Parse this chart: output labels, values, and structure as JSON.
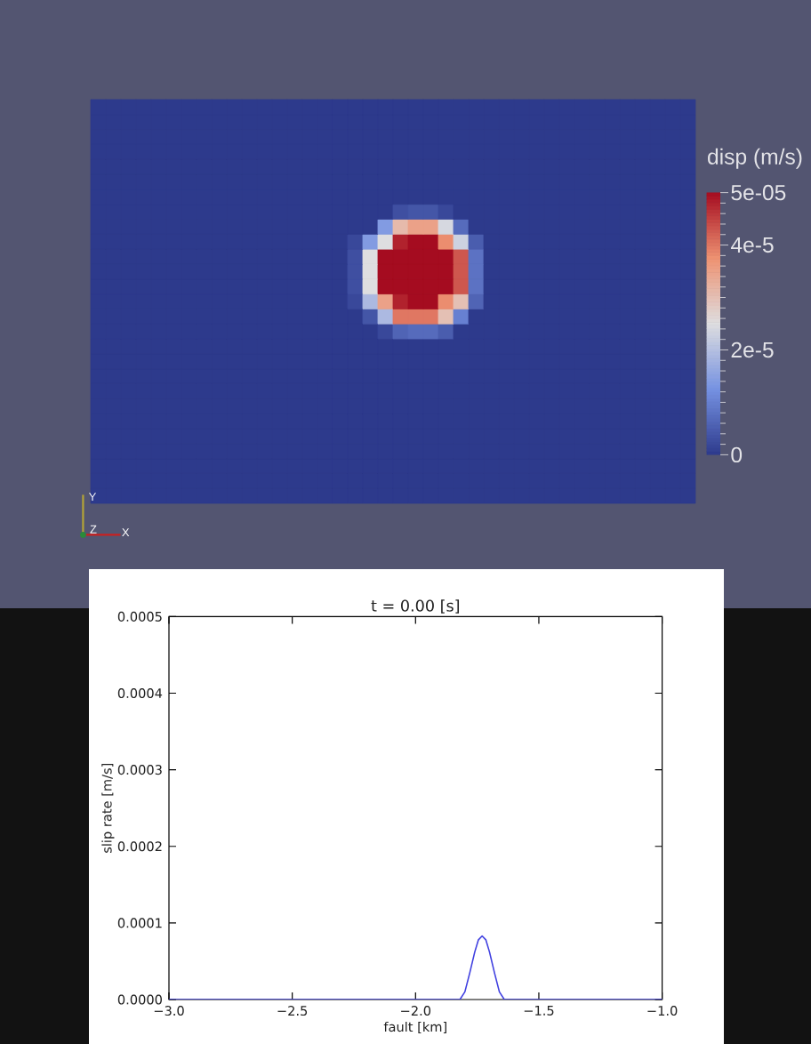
{
  "chart_data": [
    {
      "type": "heatmap",
      "clabel": "disp (m/s)",
      "annotations": [
        "Y",
        "Z",
        "X"
      ],
      "categories": [
        null,
        null,
        null,
        null,
        null,
        null,
        null,
        null,
        null,
        null,
        null,
        null,
        null,
        null,
        null,
        null,
        null,
        null,
        null,
        null,
        null,
        null,
        null,
        null,
        null,
        null,
        null,
        null,
        null,
        null,
        null,
        null,
        null,
        null,
        null,
        null,
        null,
        null,
        null,
        null
      ],
      "y_categories": [
        null,
        null,
        null,
        null,
        null,
        null,
        null,
        null,
        null,
        null,
        null,
        null,
        null,
        null,
        null,
        null,
        null,
        null,
        null,
        null,
        null,
        null,
        null,
        null,
        null,
        null,
        null
      ],
      "clim": [
        0,
        5e-05
      ],
      "cticks": [
        0,
        {
          "value": 2e-06,
          "label": null
        },
        {
          "value": 4e-06,
          "label": null
        },
        {
          "value": 6e-06,
          "label": null
        },
        {
          "value": 8e-06,
          "label": null
        },
        {
          "value": 1e-05,
          "label": null
        },
        {
          "value": 1.2e-05,
          "label": null
        },
        {
          "value": 1.4e-05,
          "label": null
        },
        {
          "value": 1.6e-05,
          "label": null
        },
        {
          "value": 1.8e-05,
          "label": null
        },
        {
          "value": 2e-05,
          "label": "2e-5"
        },
        {
          "value": 2.2e-05,
          "label": null
        },
        {
          "value": 2.4e-05,
          "label": null
        },
        {
          "value": 2.6e-05,
          "label": null
        },
        {
          "value": 2.8e-05,
          "label": null
        },
        {
          "value": 3e-05,
          "label": null
        },
        {
          "value": 3.2e-05,
          "label": null
        },
        {
          "value": 3.4e-05,
          "label": null
        },
        {
          "value": 3.6e-05,
          "label": null
        },
        {
          "value": 3.8e-05,
          "label": null
        },
        {
          "value": 4e-05,
          "label": "4e-5"
        },
        {
          "value": 4.2e-05,
          "label": null
        },
        {
          "value": 4.4e-05,
          "label": null
        },
        {
          "value": 4.6e-05,
          "label": null
        },
        {
          "value": 4.8e-05,
          "label": null
        },
        {
          "value": 5e-05,
          "label": "5e-05"
        }
      ],
      "cells": [
        [
          0,
          0,
          0,
          0,
          0,
          0,
          0,
          0,
          0,
          0,
          0,
          0,
          0,
          0,
          0,
          0,
          0,
          0,
          0,
          0,
          0,
          0,
          0,
          0,
          0,
          0,
          0,
          0,
          0,
          0,
          0,
          0,
          0,
          0,
          0,
          0,
          0,
          0,
          0,
          0
        ],
        [
          0,
          0,
          0,
          0,
          0,
          0,
          0,
          0,
          0,
          0,
          0,
          0,
          0,
          0,
          0,
          0,
          0,
          0,
          0,
          0,
          0,
          0,
          0,
          0,
          0,
          0,
          0,
          0,
          0,
          0,
          0,
          0,
          0,
          0,
          0,
          0,
          0,
          0,
          0,
          0
        ],
        [
          0,
          0,
          0,
          0,
          0,
          0,
          0,
          0,
          0,
          0,
          0,
          0,
          0,
          0,
          0,
          0,
          0,
          0,
          0,
          0,
          0,
          0,
          0,
          0,
          0,
          0,
          0,
          0,
          0,
          0,
          0,
          0,
          0,
          0,
          0,
          0,
          0,
          0,
          0,
          0
        ],
        [
          0,
          0,
          0,
          0,
          0,
          0,
          0,
          0,
          0,
          0,
          0,
          0,
          0,
          0,
          0,
          0,
          0,
          0,
          0,
          0,
          0,
          0,
          0,
          0,
          0,
          0,
          0,
          0,
          0,
          0,
          0,
          0,
          0,
          0,
          0,
          0,
          0,
          0,
          0,
          0
        ],
        [
          0,
          0,
          0,
          0,
          0,
          0,
          0,
          0,
          0,
          0,
          0,
          0,
          0,
          0,
          0,
          0,
          0,
          0,
          0,
          0,
          0,
          0,
          0,
          0,
          0,
          0,
          0,
          0,
          0,
          0,
          0,
          0,
          0,
          0,
          0,
          0,
          0,
          0,
          0,
          0
        ],
        [
          0,
          0,
          0,
          0,
          0,
          0,
          0,
          0,
          0,
          0,
          0,
          0,
          0,
          0,
          0,
          0,
          0,
          0,
          0,
          0,
          0,
          0,
          0,
          0,
          0,
          0,
          0,
          0,
          0,
          0,
          0,
          0,
          0,
          0,
          0,
          0,
          0,
          0,
          0,
          0
        ],
        [
          0,
          0,
          0,
          0,
          0,
          0,
          0,
          0,
          0,
          0,
          0,
          0,
          0,
          0,
          0,
          0,
          0,
          0,
          0,
          0,
          0,
          0,
          0,
          0,
          0,
          0,
          0,
          0,
          0,
          0,
          0,
          0,
          0,
          0,
          0,
          0,
          0,
          0,
          0,
          0
        ],
        [
          0,
          0,
          0,
          0,
          0,
          0,
          0,
          0,
          0,
          0,
          0,
          0,
          0,
          0,
          0,
          0,
          0,
          0,
          0,
          0,
          3e-06,
          4e-06,
          4e-06,
          2e-06,
          0,
          0,
          0,
          0,
          0,
          0,
          0,
          0,
          0,
          0,
          0,
          0,
          0,
          0,
          0,
          0
        ],
        [
          0,
          0,
          0,
          0,
          0,
          0,
          0,
          0,
          0,
          0,
          0,
          0,
          0,
          0,
          0,
          0,
          0,
          0,
          0,
          1.4e-05,
          3.1e-05,
          3.5e-05,
          3.5e-05,
          2.4e-05,
          7e-06,
          0,
          0,
          0,
          0,
          0,
          0,
          0,
          0,
          0,
          0,
          0,
          0,
          0,
          0,
          0
        ],
        [
          0,
          0,
          0,
          0,
          0,
          0,
          0,
          0,
          0,
          0,
          0,
          0,
          0,
          0,
          0,
          0,
          0,
          2e-06,
          1.4e-05,
          2.5e-05,
          4.8e-05,
          5e-05,
          5e-05,
          3.8e-05,
          2.3e-05,
          5e-06,
          0,
          0,
          0,
          0,
          0,
          0,
          0,
          0,
          0,
          0,
          0,
          0,
          0,
          0
        ],
        [
          0,
          0,
          0,
          0,
          0,
          0,
          0,
          0,
          0,
          0,
          0,
          0,
          0,
          0,
          0,
          0,
          0,
          3e-06,
          2.5e-05,
          5e-05,
          5e-05,
          5e-05,
          5e-05,
          5e-05,
          4.3e-05,
          8e-06,
          0,
          0,
          0,
          0,
          0,
          0,
          0,
          0,
          0,
          0,
          0,
          0,
          0,
          0
        ],
        [
          0,
          0,
          0,
          0,
          0,
          0,
          0,
          0,
          0,
          0,
          0,
          0,
          0,
          0,
          0,
          0,
          0,
          3e-06,
          2.5e-05,
          5e-05,
          5e-05,
          5e-05,
          5e-05,
          5e-05,
          4.3e-05,
          8e-06,
          0,
          0,
          0,
          0,
          0,
          0,
          0,
          0,
          0,
          0,
          0,
          0,
          0,
          0
        ],
        [
          0,
          0,
          0,
          0,
          0,
          0,
          0,
          0,
          0,
          0,
          0,
          0,
          0,
          0,
          0,
          0,
          0,
          3e-06,
          2.5e-05,
          5e-05,
          5e-05,
          5e-05,
          5e-05,
          5e-05,
          4.3e-05,
          8e-06,
          0,
          0,
          0,
          0,
          0,
          0,
          0,
          0,
          0,
          0,
          0,
          0,
          0,
          0
        ],
        [
          0,
          0,
          0,
          0,
          0,
          0,
          0,
          0,
          0,
          0,
          0,
          0,
          0,
          0,
          0,
          0,
          0,
          2e-06,
          1.9e-05,
          3.5e-05,
          4.8e-05,
          5e-05,
          5e-05,
          3.8e-05,
          3e-05,
          6e-06,
          0,
          0,
          0,
          0,
          0,
          0,
          0,
          0,
          0,
          0,
          0,
          0,
          0,
          0
        ],
        [
          0,
          0,
          0,
          0,
          0,
          0,
          0,
          0,
          0,
          0,
          0,
          0,
          0,
          0,
          0,
          0,
          0,
          0,
          4e-06,
          1.9e-05,
          4e-05,
          4e-05,
          4e-05,
          3e-05,
          1e-05,
          0,
          0,
          0,
          0,
          0,
          0,
          0,
          0,
          0,
          0,
          0,
          0,
          0,
          0,
          0
        ],
        [
          0,
          0,
          0,
          0,
          0,
          0,
          0,
          0,
          0,
          0,
          0,
          0,
          0,
          0,
          0,
          0,
          0,
          0,
          0,
          2e-06,
          6e-06,
          7e-06,
          7e-06,
          5e-06,
          0,
          0,
          0,
          0,
          0,
          0,
          0,
          0,
          0,
          0,
          0,
          0,
          0,
          0,
          0,
          0
        ],
        [
          0,
          0,
          0,
          0,
          0,
          0,
          0,
          0,
          0,
          0,
          0,
          0,
          0,
          0,
          0,
          0,
          0,
          0,
          0,
          0,
          0,
          0,
          0,
          0,
          0,
          0,
          0,
          0,
          0,
          0,
          0,
          0,
          0,
          0,
          0,
          0,
          0,
          0,
          0,
          0
        ],
        [
          0,
          0,
          0,
          0,
          0,
          0,
          0,
          0,
          0,
          0,
          0,
          0,
          0,
          0,
          0,
          0,
          0,
          0,
          0,
          0,
          0,
          0,
          0,
          0,
          0,
          0,
          0,
          0,
          0,
          0,
          0,
          0,
          0,
          0,
          0,
          0,
          0,
          0,
          0,
          0
        ],
        [
          0,
          0,
          0,
          0,
          0,
          0,
          0,
          0,
          0,
          0,
          0,
          0,
          0,
          0,
          0,
          0,
          0,
          0,
          0,
          0,
          0,
          0,
          0,
          0,
          0,
          0,
          0,
          0,
          0,
          0,
          0,
          0,
          0,
          0,
          0,
          0,
          0,
          0,
          0,
          0
        ],
        [
          0,
          0,
          0,
          0,
          0,
          0,
          0,
          0,
          0,
          0,
          0,
          0,
          0,
          0,
          0,
          0,
          0,
          0,
          0,
          0,
          0,
          0,
          0,
          0,
          0,
          0,
          0,
          0,
          0,
          0,
          0,
          0,
          0,
          0,
          0,
          0,
          0,
          0,
          0,
          0
        ],
        [
          0,
          0,
          0,
          0,
          0,
          0,
          0,
          0,
          0,
          0,
          0,
          0,
          0,
          0,
          0,
          0,
          0,
          0,
          0,
          0,
          0,
          0,
          0,
          0,
          0,
          0,
          0,
          0,
          0,
          0,
          0,
          0,
          0,
          0,
          0,
          0,
          0,
          0,
          0,
          0
        ],
        [
          0,
          0,
          0,
          0,
          0,
          0,
          0,
          0,
          0,
          0,
          0,
          0,
          0,
          0,
          0,
          0,
          0,
          0,
          0,
          0,
          0,
          0,
          0,
          0,
          0,
          0,
          0,
          0,
          0,
          0,
          0,
          0,
          0,
          0,
          0,
          0,
          0,
          0,
          0,
          0
        ],
        [
          0,
          0,
          0,
          0,
          0,
          0,
          0,
          0,
          0,
          0,
          0,
          0,
          0,
          0,
          0,
          0,
          0,
          0,
          0,
          0,
          0,
          0,
          0,
          0,
          0,
          0,
          0,
          0,
          0,
          0,
          0,
          0,
          0,
          0,
          0,
          0,
          0,
          0,
          0,
          0
        ],
        [
          0,
          0,
          0,
          0,
          0,
          0,
          0,
          0,
          0,
          0,
          0,
          0,
          0,
          0,
          0,
          0,
          0,
          0,
          0,
          0,
          0,
          0,
          0,
          0,
          0,
          0,
          0,
          0,
          0,
          0,
          0,
          0,
          0,
          0,
          0,
          0,
          0,
          0,
          0,
          0
        ],
        [
          0,
          0,
          0,
          0,
          0,
          0,
          0,
          0,
          0,
          0,
          0,
          0,
          0,
          0,
          0,
          0,
          0,
          0,
          0,
          0,
          0,
          0,
          0,
          0,
          0,
          0,
          0,
          0,
          0,
          0,
          0,
          0,
          0,
          0,
          0,
          0,
          0,
          0,
          0,
          0
        ],
        [
          0,
          0,
          0,
          0,
          0,
          0,
          0,
          0,
          0,
          0,
          0,
          0,
          0,
          0,
          0,
          0,
          0,
          0,
          0,
          0,
          0,
          0,
          0,
          0,
          0,
          0,
          0,
          0,
          0,
          0,
          0,
          0,
          0,
          0,
          0,
          0,
          0,
          0,
          0,
          0
        ],
        [
          0,
          0,
          0,
          0,
          0,
          0,
          0,
          0,
          0,
          0,
          0,
          0,
          0,
          0,
          0,
          0,
          0,
          0,
          0,
          0,
          0,
          0,
          0,
          0,
          0,
          0,
          0,
          0,
          0,
          0,
          0,
          0,
          0,
          0,
          0,
          0,
          0,
          0,
          0,
          0
        ]
      ]
    },
    {
      "type": "line",
      "title": "t = 0.00 [s]",
      "xlabel": "fault [km]",
      "ylabel": "slip rate [m/s]",
      "x": [
        -3.0,
        -1.82,
        -1.8,
        -1.78,
        -1.76,
        -1.745,
        -1.73,
        -1.715,
        -1.7,
        -1.68,
        -1.66,
        -1.64,
        -1.0
      ],
      "values": [
        0,
        0,
        1e-05,
        3.5e-05,
        6.2e-05,
        7.8e-05,
        8.3e-05,
        7.8e-05,
        6.2e-05,
        3.5e-05,
        1e-05,
        0,
        0
      ],
      "color": "#4040e0",
      "xlim": [
        -3.0,
        -1.0
      ],
      "ylim": [
        0,
        0.0005
      ],
      "xticks": [
        {
          "value": -3.0,
          "label": "−3.0"
        },
        {
          "value": -2.5,
          "label": "−2.5"
        },
        {
          "value": -2.0,
          "label": "−2.0"
        },
        {
          "value": -1.5,
          "label": "−1.5"
        },
        {
          "value": -1.0,
          "label": "−1.0"
        }
      ],
      "yticks": [
        {
          "value": 0,
          "label": "0.0000"
        },
        {
          "value": 0.0001,
          "label": "0.0001"
        },
        {
          "value": 0.0002,
          "label": "0.0002"
        },
        {
          "value": 0.0003,
          "label": "0.0003"
        },
        {
          "value": 0.0004,
          "label": "0.0004"
        },
        {
          "value": 0.0005,
          "label": "0.0005"
        }
      ]
    }
  ]
}
